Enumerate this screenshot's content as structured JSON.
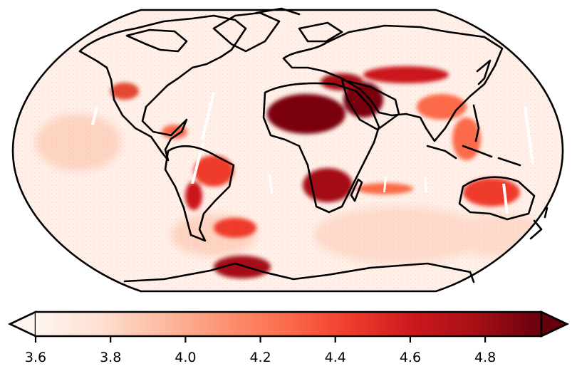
{
  "map": {
    "projection": "Robinson",
    "field": "gridded global field, highest values over Sahara/Arabia deserts",
    "coastlines": true
  },
  "colorbar": {
    "colormap": "Reds",
    "extend": "both",
    "vmin": 3.6,
    "vmax": 4.95,
    "stops": [
      "#fff5f0",
      "#fee0d2",
      "#fcbba1",
      "#fc9272",
      "#fb6a4a",
      "#ef3b2c",
      "#cb181d",
      "#a50f15",
      "#67000d"
    ],
    "ticks": [
      {
        "value": 3.6,
        "label": "3.6"
      },
      {
        "value": 3.8,
        "label": "3.8"
      },
      {
        "value": 4.0,
        "label": "4.0"
      },
      {
        "value": 4.2,
        "label": "4.2"
      },
      {
        "value": 4.4,
        "label": "4.4"
      },
      {
        "value": 4.6,
        "label": "4.6"
      },
      {
        "value": 4.8,
        "label": "4.8"
      }
    ]
  }
}
